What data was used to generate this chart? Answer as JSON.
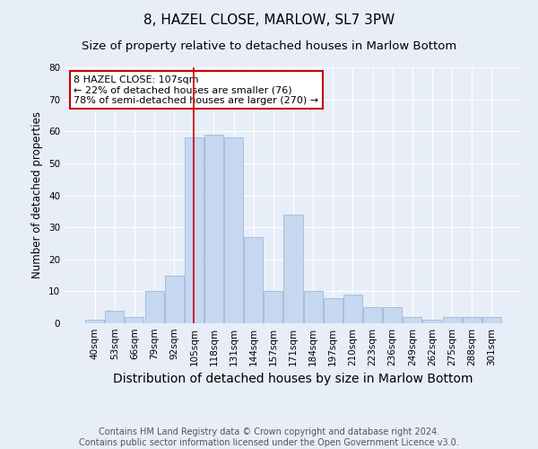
{
  "title": "8, HAZEL CLOSE, MARLOW, SL7 3PW",
  "subtitle": "Size of property relative to detached houses in Marlow Bottom",
  "xlabel": "Distribution of detached houses by size in Marlow Bottom",
  "ylabel": "Number of detached properties",
  "categories": [
    "40sqm",
    "53sqm",
    "66sqm",
    "79sqm",
    "92sqm",
    "105sqm",
    "118sqm",
    "131sqm",
    "144sqm",
    "157sqm",
    "171sqm",
    "184sqm",
    "197sqm",
    "210sqm",
    "223sqm",
    "236sqm",
    "249sqm",
    "262sqm",
    "275sqm",
    "288sqm",
    "301sqm"
  ],
  "values": [
    1,
    4,
    2,
    10,
    15,
    58,
    59,
    58,
    27,
    10,
    34,
    10,
    8,
    9,
    5,
    5,
    2,
    1,
    2,
    2,
    2
  ],
  "bar_color": "#c5d8f0",
  "bar_edge_color": "#a0b8d8",
  "vline_x": 5,
  "vline_color": "#cc0000",
  "annotation_text": "8 HAZEL CLOSE: 107sqm\n← 22% of detached houses are smaller (76)\n78% of semi-detached houses are larger (270) →",
  "annotation_box_color": "#ffffff",
  "annotation_box_edge": "#cc0000",
  "ylim": [
    0,
    80
  ],
  "yticks": [
    0,
    10,
    20,
    30,
    40,
    50,
    60,
    70,
    80
  ],
  "bg_color": "#e8eef8",
  "grid_color": "#ffffff",
  "footer": "Contains HM Land Registry data © Crown copyright and database right 2024.\nContains public sector information licensed under the Open Government Licence v3.0.",
  "title_fontsize": 11,
  "subtitle_fontsize": 9.5,
  "xlabel_fontsize": 10,
  "ylabel_fontsize": 8.5,
  "footer_fontsize": 7,
  "annot_fontsize": 8,
  "tick_fontsize": 7.5
}
